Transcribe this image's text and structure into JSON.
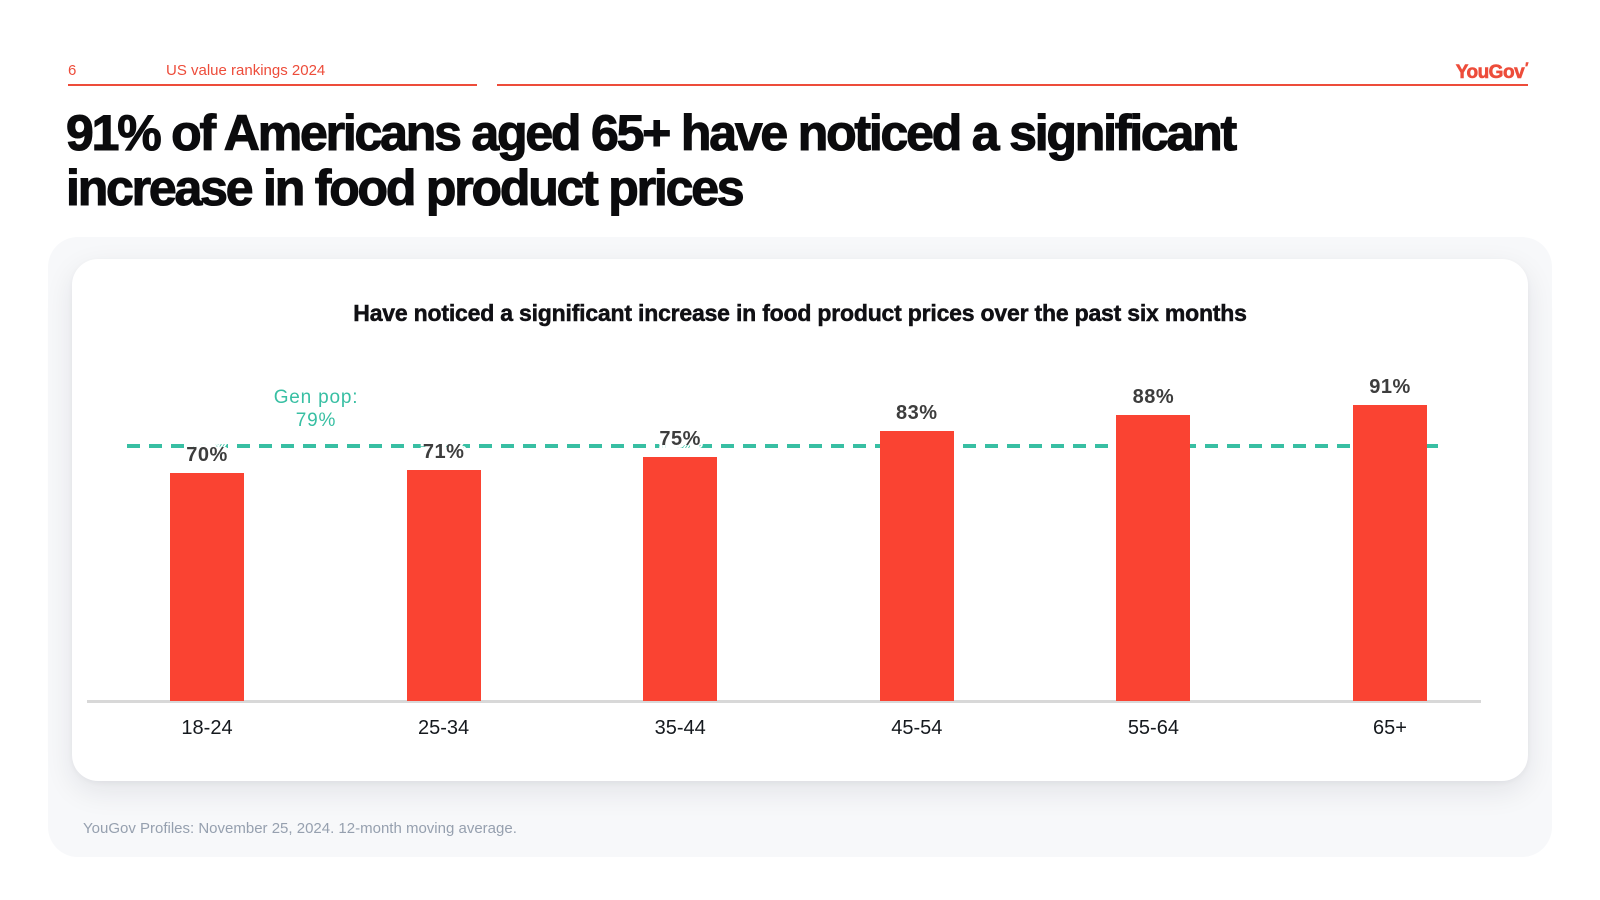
{
  "header": {
    "page_number": "6",
    "title": "US value rankings 2024",
    "logo_text": "YouGov",
    "logo_mark": "′"
  },
  "slide": {
    "title": "91% of Americans aged 65+ have noticed a significant increase in food product prices",
    "footnote": "YouGov Profiles: November 25, 2024. 12-month moving average."
  },
  "chart_data": {
    "type": "bar",
    "title": "Have noticed a significant increase in food product prices over the past six months",
    "categories": [
      "18-24",
      "25-34",
      "35-44",
      "45-54",
      "55-64",
      "65+"
    ],
    "values": [
      70,
      71,
      75,
      83,
      88,
      91
    ],
    "value_suffix": "%",
    "reference_line": {
      "label_line1": "Gen pop:",
      "label_line2": "79%",
      "value": 79
    },
    "ylim": [
      0,
      100
    ],
    "grid": false,
    "legend": "none",
    "bar_color": "#FA4332",
    "reference_color": "#38BFA3",
    "axis_color": "#D8D8D8",
    "value_label_color": "#3D3D3D"
  },
  "colors": {
    "brand_red": "#ED4C3A",
    "title_ink": "#0B0B0D",
    "footnote_gray": "#96A0AF",
    "card_bg": "#FFFFFF",
    "panel_bg": "#F7F8FA"
  }
}
